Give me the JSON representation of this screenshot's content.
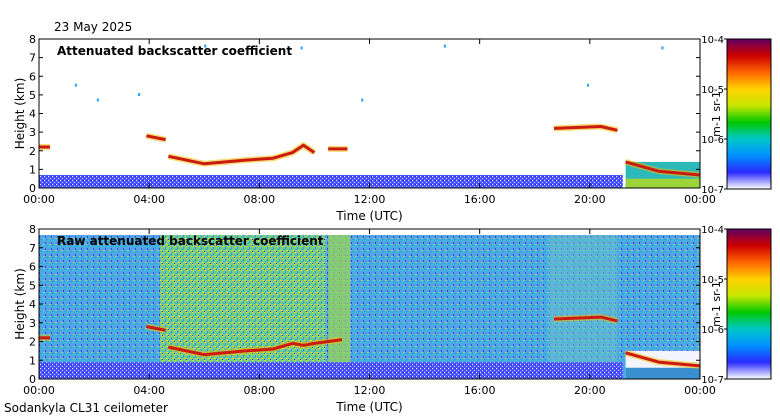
{
  "header": {
    "date": "23 May 2025"
  },
  "footer": {
    "instrument": "Sodankyla CL31 ceilometer"
  },
  "colors": {
    "cloud": "#cc1a10",
    "colorbar": [
      "#ffffff",
      "#2a2aff",
      "#0090ff",
      "#00c8c8",
      "#00c800",
      "#c8e600",
      "#ffd200",
      "#ff6400",
      "#cc0000",
      "#600060"
    ]
  },
  "chart_data": [
    {
      "type": "heatmap",
      "title": "Attenuated backscatter coefficient",
      "xlabel": "Time (UTC)",
      "ylabel": "Height (km)",
      "x_ticks": [
        "00:00",
        "04:00",
        "08:00",
        "12:00",
        "16:00",
        "20:00",
        "00:00"
      ],
      "y_ticks": [
        "0",
        "1",
        "2",
        "3",
        "4",
        "5",
        "6",
        "7",
        "8"
      ],
      "xlim": [
        0,
        24
      ],
      "ylim": [
        0,
        8
      ],
      "grid": false,
      "colorbar": {
        "label": "m-1 sr-1",
        "scale": "log",
        "ticks": [
          "10-7",
          "10-6",
          "10-5",
          "10-4"
        ],
        "range": [
          1e-07,
          0.0001
        ]
      },
      "cloud_layers": [
        {
          "t": [
            0.0,
            0.4
          ],
          "h": [
            2.2,
            2.2
          ]
        },
        {
          "t": [
            3.9,
            4.6
          ],
          "h": [
            2.8,
            2.6
          ]
        },
        {
          "t": [
            4.7,
            6.0,
            7.5,
            8.5,
            9.2,
            9.6,
            10.0
          ],
          "h": [
            1.7,
            1.3,
            1.5,
            1.6,
            1.9,
            2.3,
            1.9
          ]
        },
        {
          "t": [
            10.5,
            11.2
          ],
          "h": [
            2.1,
            2.1
          ]
        },
        {
          "t": [
            18.7,
            19.5,
            20.4,
            21.0
          ],
          "h": [
            3.2,
            3.25,
            3.3,
            3.1
          ]
        },
        {
          "t": [
            21.3,
            22.5,
            24.0
          ],
          "h": [
            1.4,
            0.9,
            0.7
          ]
        }
      ]
    },
    {
      "type": "heatmap",
      "title": "Raw attenuated backscatter coefficient",
      "xlabel": "Time (UTC)",
      "ylabel": "Height (km)",
      "x_ticks": [
        "00:00",
        "04:00",
        "08:00",
        "12:00",
        "16:00",
        "20:00",
        "00:00"
      ],
      "y_ticks": [
        "0",
        "1",
        "2",
        "3",
        "4",
        "5",
        "6",
        "7",
        "8"
      ],
      "xlim": [
        0,
        24
      ],
      "ylim": [
        0,
        8
      ],
      "grid": false,
      "colorbar": {
        "label": "m-1 sr-1",
        "scale": "log",
        "ticks": [
          "10-7",
          "10-6",
          "10-5",
          "10-4"
        ],
        "range": [
          1e-07,
          0.0001
        ]
      },
      "cloud_layers": [
        {
          "t": [
            0.0,
            0.4
          ],
          "h": [
            2.2,
            2.2
          ]
        },
        {
          "t": [
            3.9,
            4.6
          ],
          "h": [
            2.8,
            2.6
          ]
        },
        {
          "t": [
            4.7,
            6.0,
            7.5,
            8.5,
            9.2,
            9.6,
            10.0,
            11.0
          ],
          "h": [
            1.7,
            1.3,
            1.5,
            1.6,
            1.9,
            1.8,
            1.9,
            2.1
          ]
        },
        {
          "t": [
            18.7,
            19.5,
            20.4,
            21.0
          ],
          "h": [
            3.2,
            3.25,
            3.3,
            3.1
          ]
        },
        {
          "t": [
            21.3,
            22.5,
            24.0
          ],
          "h": [
            1.4,
            0.9,
            0.7
          ]
        }
      ]
    }
  ]
}
